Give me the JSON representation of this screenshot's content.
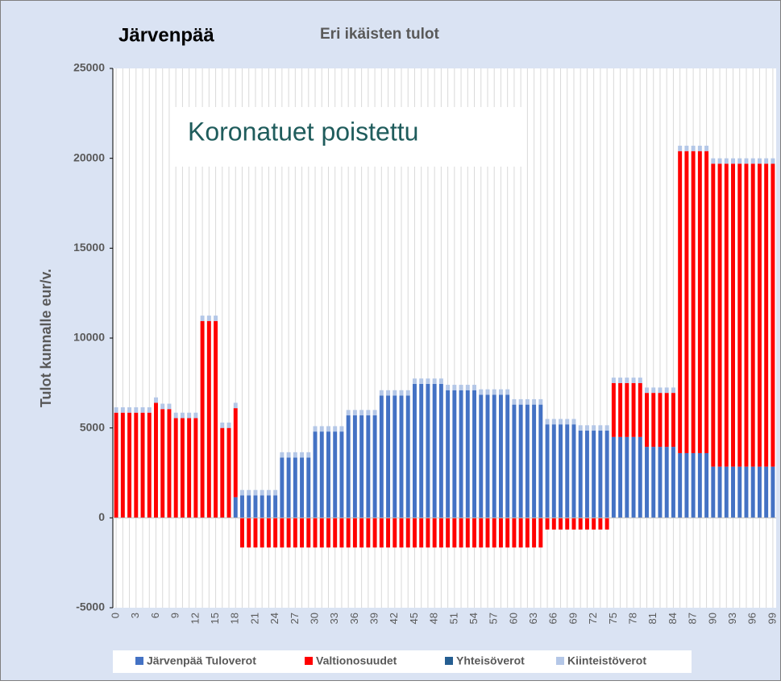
{
  "chart_data": {
    "type": "stacked_bar",
    "title": "Järvenpää",
    "subtitle": "Eri ikäisten tulot",
    "ylabel": "Tulot kunnalle eur/v.",
    "annotation": "Koronatuet poistettu",
    "categories": [
      "0",
      null,
      null,
      "3",
      null,
      null,
      "6",
      null,
      null,
      "9",
      null,
      null,
      "12",
      null,
      null,
      "15",
      null,
      null,
      "18",
      null,
      null,
      "21",
      null,
      null,
      "24",
      null,
      null,
      "27",
      null,
      null,
      "30",
      null,
      null,
      "33",
      null,
      null,
      "36",
      null,
      null,
      "39",
      null,
      null,
      "42",
      null,
      null,
      "45",
      null,
      null,
      "48",
      null,
      null,
      "51",
      null,
      null,
      "54",
      null,
      null,
      "57",
      null,
      null,
      "60",
      null,
      null,
      "63",
      null,
      null,
      "66",
      null,
      null,
      "69",
      null,
      null,
      "72",
      null,
      null,
      "75",
      null,
      null,
      "78",
      null,
      null,
      "81",
      null,
      null,
      "84",
      null,
      null,
      "87",
      null,
      null,
      "90",
      null,
      null,
      "93",
      null,
      null,
      "96",
      null,
      null,
      "99"
    ],
    "series": [
      {
        "name": "Järvenpää Tuloverot",
        "color": "#4472c4",
        "values": [
          0,
          0,
          0,
          0,
          0,
          0,
          0,
          0,
          0,
          0,
          0,
          0,
          0,
          0,
          0,
          0,
          0,
          0,
          1150,
          1250,
          1250,
          1250,
          1250,
          1250,
          1250,
          3350,
          3350,
          3350,
          3350,
          3350,
          4800,
          4800,
          4800,
          4800,
          4800,
          5700,
          5700,
          5700,
          5700,
          5700,
          6800,
          6800,
          6800,
          6800,
          6800,
          7450,
          7450,
          7450,
          7450,
          7450,
          7100,
          7100,
          7100,
          7100,
          7100,
          6850,
          6850,
          6850,
          6850,
          6850,
          6300,
          6300,
          6300,
          6300,
          6300,
          5200,
          5200,
          5200,
          5200,
          5200,
          4850,
          4850,
          4850,
          4850,
          4850,
          4500,
          4500,
          4500,
          4500,
          4500,
          3950,
          3950,
          3950,
          3950,
          3950,
          3600,
          3600,
          3600,
          3600,
          3600,
          2850,
          2850,
          2850,
          2850,
          2850,
          2850,
          2850,
          2850,
          2850,
          2850
        ]
      },
      {
        "name": "Valtionosuudet",
        "color": "#ff0000",
        "values": [
          5850,
          5850,
          5850,
          5850,
          5850,
          5850,
          6400,
          6050,
          6050,
          5550,
          5550,
          5550,
          5550,
          10950,
          10950,
          10950,
          5000,
          5000,
          4950,
          -1650,
          -1650,
          -1650,
          -1650,
          -1650,
          -1650,
          -1650,
          -1650,
          -1650,
          -1650,
          -1650,
          -1650,
          -1650,
          -1650,
          -1650,
          -1650,
          -1650,
          -1650,
          -1650,
          -1650,
          -1650,
          -1650,
          -1650,
          -1650,
          -1650,
          -1650,
          -1650,
          -1650,
          -1650,
          -1650,
          -1650,
          -1650,
          -1650,
          -1650,
          -1650,
          -1650,
          -1650,
          -1650,
          -1650,
          -1650,
          -1650,
          -1650,
          -1650,
          -1650,
          -1650,
          -1650,
          -650,
          -650,
          -650,
          -650,
          -650,
          -650,
          -650,
          -650,
          -650,
          -650,
          3000,
          3000,
          3000,
          3000,
          3000,
          3000,
          3000,
          3000,
          3000,
          3000,
          16800,
          16800,
          16800,
          16800,
          16800,
          16850,
          16850,
          16850,
          16850,
          16850,
          16850,
          16850,
          16850,
          16850,
          16850
        ]
      },
      {
        "name": "Yhteisöverot",
        "color": "#255e91",
        "values": [
          0,
          0,
          0,
          0,
          0,
          0,
          0,
          0,
          0,
          0,
          0,
          0,
          0,
          0,
          0,
          0,
          0,
          0,
          0,
          0,
          0,
          0,
          0,
          0,
          0,
          0,
          0,
          0,
          0,
          0,
          0,
          0,
          0,
          0,
          0,
          0,
          0,
          0,
          0,
          0,
          0,
          0,
          0,
          0,
          0,
          0,
          0,
          0,
          0,
          0,
          0,
          0,
          0,
          0,
          0,
          0,
          0,
          0,
          0,
          0,
          0,
          0,
          0,
          0,
          0,
          0,
          0,
          0,
          0,
          0,
          0,
          0,
          0,
          0,
          0,
          0,
          0,
          0,
          0,
          0,
          0,
          0,
          0,
          0,
          0,
          0,
          0,
          0,
          0,
          0,
          0,
          0,
          0,
          0,
          0,
          0,
          0,
          0,
          0,
          0
        ]
      },
      {
        "name": "Kiinteistöverot",
        "color": "#b4c7e7",
        "values": [
          300,
          300,
          300,
          300,
          300,
          300,
          300,
          300,
          300,
          300,
          300,
          300,
          300,
          300,
          300,
          300,
          300,
          300,
          300,
          300,
          300,
          300,
          300,
          300,
          300,
          300,
          300,
          300,
          300,
          300,
          300,
          300,
          300,
          300,
          300,
          300,
          300,
          300,
          300,
          300,
          300,
          300,
          300,
          300,
          300,
          300,
          300,
          300,
          300,
          300,
          300,
          300,
          300,
          300,
          300,
          300,
          300,
          300,
          300,
          300,
          300,
          300,
          300,
          300,
          300,
          300,
          300,
          300,
          300,
          300,
          300,
          300,
          300,
          300,
          300,
          300,
          300,
          300,
          300,
          300,
          300,
          300,
          300,
          300,
          300,
          300,
          300,
          300,
          300,
          300,
          300,
          300,
          300,
          300,
          300,
          300,
          300,
          300,
          300,
          300
        ]
      }
    ],
    "ylim": [
      -5000,
      25000
    ],
    "yticks": [
      -5000,
      0,
      5000,
      10000,
      15000,
      20000,
      25000
    ],
    "grid": true
  }
}
